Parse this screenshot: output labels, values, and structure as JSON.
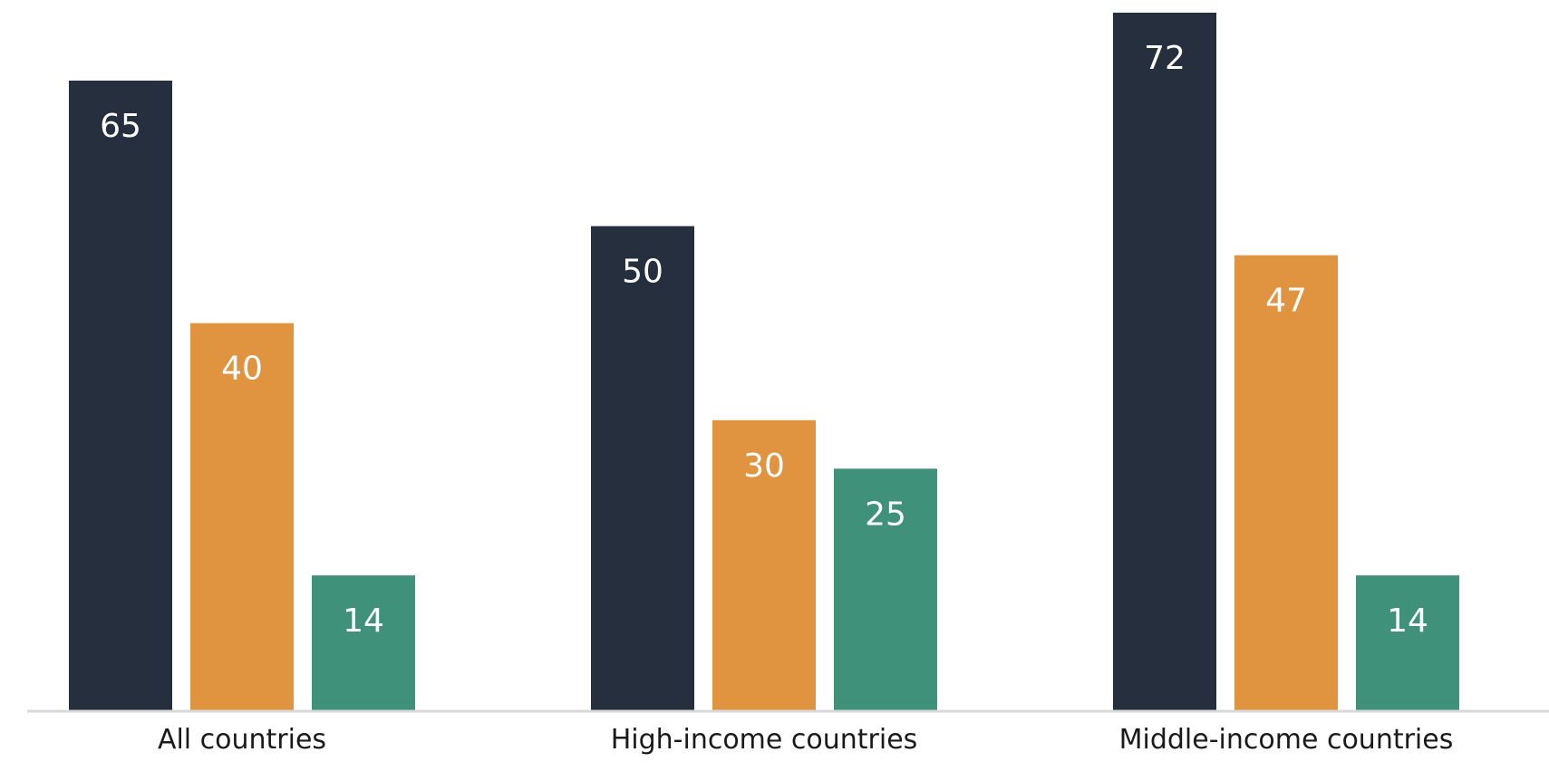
{
  "chart_data": {
    "type": "bar",
    "categories": [
      "All countries",
      "High-income countries",
      "Middle-income countries"
    ],
    "series": [
      {
        "values": [
          65,
          50,
          72
        ],
        "color": "#262f3d"
      },
      {
        "values": [
          40,
          30,
          47
        ],
        "color": "#e09440"
      },
      {
        "values": [
          14,
          25,
          14
        ],
        "color": "#3f917a"
      }
    ],
    "ylim": [
      0,
      72
    ],
    "data_labels": true,
    "grid": false,
    "axis_color": "#d9d9d9",
    "title": "",
    "xlabel": "",
    "ylabel": ""
  }
}
